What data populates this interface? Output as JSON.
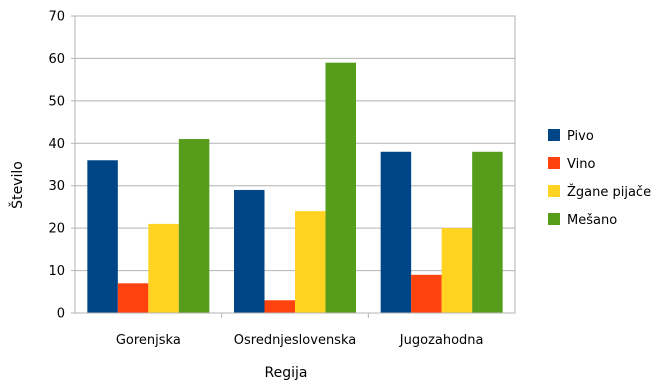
{
  "chart_data": {
    "type": "bar",
    "title": "",
    "xlabel": "Regija",
    "ylabel": "Število",
    "ylim": [
      0,
      70
    ],
    "yticks": [
      0,
      10,
      20,
      30,
      40,
      50,
      60,
      70
    ],
    "grid": true,
    "legend_position": "right",
    "categories": [
      "Gorenjska",
      "Osrednjeslovenska",
      "Jugozahodna"
    ],
    "series": [
      {
        "name": "Pivo",
        "color": "#004586",
        "values": [
          36,
          29,
          38
        ]
      },
      {
        "name": "Vino",
        "color": "#ff420e",
        "values": [
          7,
          3,
          9
        ]
      },
      {
        "name": "Žgane pijače",
        "color": "#ffd320",
        "values": [
          21,
          24,
          20
        ]
      },
      {
        "name": "Mešano",
        "color": "#579d1c",
        "values": [
          41,
          59,
          38
        ]
      }
    ]
  }
}
